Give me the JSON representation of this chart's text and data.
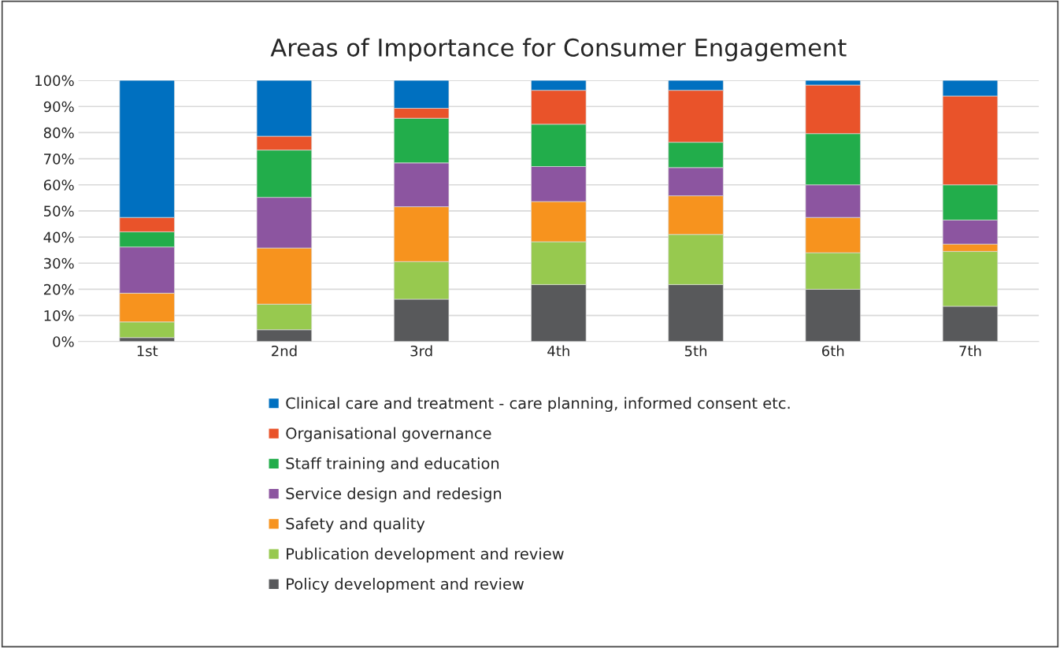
{
  "chart_data": {
    "type": "bar",
    "title": "Areas of Importance for Consumer Engagement",
    "stacked": true,
    "categories": [
      "1st",
      "2nd",
      "3rd",
      "4th",
      "5th",
      "6th",
      "7th"
    ],
    "series": [
      {
        "name": "Policy development and review",
        "color": "#58595b",
        "values": [
          1.5,
          4.5,
          16.2,
          21.8,
          21.8,
          20,
          13.5
        ]
      },
      {
        "name": "Publication development and review",
        "color": "#97c94f",
        "values": [
          6,
          9.8,
          14.4,
          16.4,
          19.2,
          14,
          21
        ]
      },
      {
        "name": "Safety and quality",
        "color": "#f7931e",
        "values": [
          11,
          21.5,
          21,
          15.4,
          14.8,
          13.5,
          2.8
        ]
      },
      {
        "name": "Service design and redesign",
        "color": "#8c55a0",
        "values": [
          17.7,
          19.4,
          16.8,
          13.4,
          10.8,
          12.5,
          9.2
        ]
      },
      {
        "name": "Staff training and education",
        "color": "#22ad4b",
        "values": [
          5.8,
          18.1,
          17.1,
          16.2,
          9.7,
          19.6,
          13.5
        ]
      },
      {
        "name": "Organisational governance",
        "color": "#e9532a",
        "values": [
          5.5,
          5.3,
          3.8,
          13,
          19.9,
          18.6,
          34
        ]
      },
      {
        "name": "Clinical care and treatment - care planning, informed consent etc.",
        "color": "#0070c0",
        "values": [
          52.5,
          21.4,
          10.7,
          3.8,
          3.8,
          1.8,
          6
        ]
      }
    ],
    "ylim": [
      0,
      100
    ],
    "yticks": [
      {
        "value": 0,
        "label": "0%"
      },
      {
        "value": 10,
        "label": "10%"
      },
      {
        "value": 20,
        "label": "20%"
      },
      {
        "value": 30,
        "label": "30%"
      },
      {
        "value": 40,
        "label": "40%"
      },
      {
        "value": 50,
        "label": "50%"
      },
      {
        "value": 60,
        "label": "60%"
      },
      {
        "value": 70,
        "label": "70%"
      },
      {
        "value": 80,
        "label": "80%"
      },
      {
        "value": 90,
        "label": "90%"
      },
      {
        "value": 100,
        "label": "100%"
      }
    ],
    "grid": "y",
    "legend": "bottom"
  }
}
